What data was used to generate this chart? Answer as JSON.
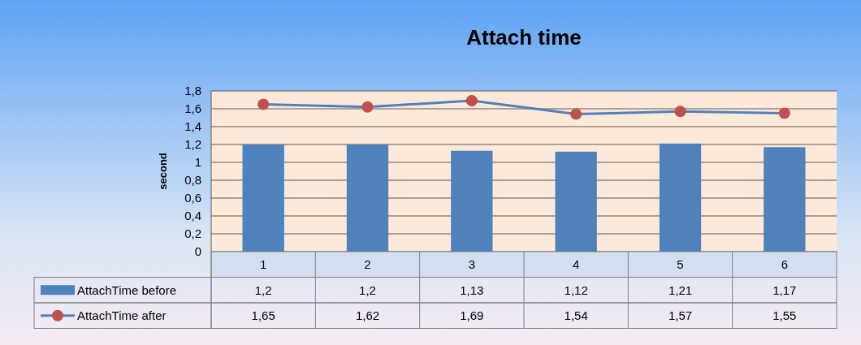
{
  "chart_data": {
    "type": "bar",
    "title": "Attach time",
    "ylabel": "second",
    "categories": [
      "1",
      "2",
      "3",
      "4",
      "5",
      "6"
    ],
    "series": [
      {
        "name": "AttachTime before",
        "color": "#4f81bd",
        "values": [
          1.2,
          1.2,
          1.13,
          1.12,
          1.21,
          1.17
        ],
        "value_labels": [
          "1,2",
          "1,2",
          "1,13",
          "1,12",
          "1,21",
          "1,17"
        ]
      },
      {
        "name": "AttachTime after",
        "type": "line",
        "color": "#4f81bd",
        "colors": [
          "#c0504d",
          "#c0504d",
          "#c0504d",
          "#c0504d",
          "#c0504d",
          "#c0504d"
        ],
        "marker": "circle",
        "values": [
          1.65,
          1.62,
          1.69,
          1.54,
          1.57,
          1.55
        ],
        "value_labels": [
          "1,65",
          "1,62",
          "1,69",
          "1,54",
          "1,57",
          "1,55"
        ]
      }
    ],
    "ylim": [
      0,
      1.8
    ],
    "yticks": [
      0,
      {
        "value": 0.2,
        "label": "0,2"
      },
      {
        "value": 0.4,
        "label": "0,4"
      },
      {
        "value": 0.6,
        "label": "0,6"
      },
      {
        "value": 0.8,
        "label": "0,8"
      },
      1,
      {
        "value": 1.2,
        "label": "1,2"
      },
      {
        "value": 1.4,
        "label": "1,4"
      },
      {
        "value": 1.6,
        "label": "1,6"
      },
      {
        "value": 1.8,
        "label": "1,8"
      }
    ],
    "grid": "y",
    "legend": "bottom left"
  }
}
